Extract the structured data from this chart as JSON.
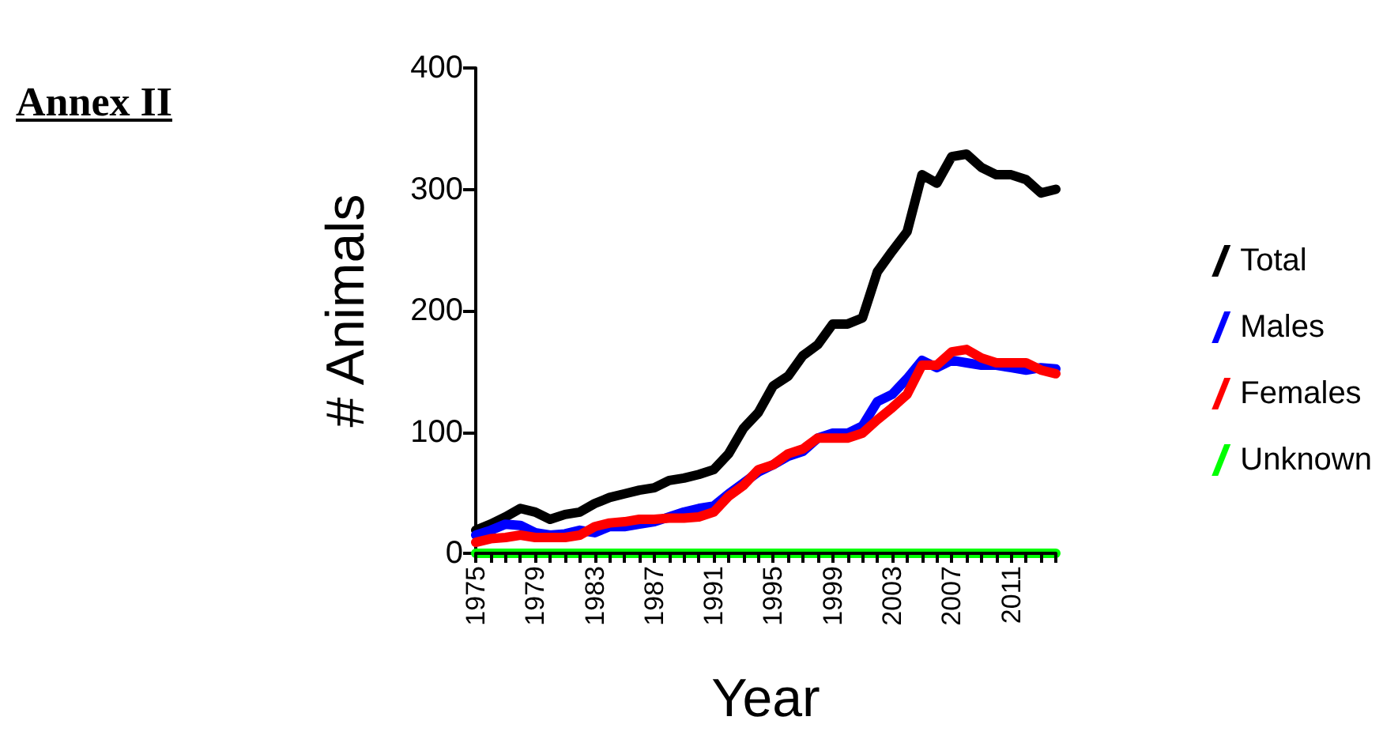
{
  "chart_data": {
    "type": "line",
    "title": "Annex II",
    "xlabel": "Year",
    "ylabel": "# Animals",
    "x": [
      1975,
      1976,
      1977,
      1978,
      1979,
      1980,
      1981,
      1982,
      1983,
      1984,
      1985,
      1986,
      1987,
      1988,
      1989,
      1990,
      1991,
      1992,
      1993,
      1994,
      1995,
      1996,
      1997,
      1998,
      1999,
      2000,
      2001,
      2002,
      2003,
      2004,
      2005,
      2006,
      2007,
      2008,
      2009,
      2010,
      2011,
      2012,
      2013,
      2014
    ],
    "series": [
      {
        "name": "Total",
        "color": "#000000",
        "values": [
          19,
          24,
          30,
          37,
          34,
          28,
          32,
          34,
          41,
          46,
          49,
          52,
          54,
          60,
          62,
          65,
          69,
          82,
          103,
          116,
          138,
          146,
          163,
          172,
          189,
          189,
          194,
          232,
          249,
          265,
          312,
          305,
          327,
          329,
          318,
          312,
          312,
          308,
          297,
          300
        ]
      },
      {
        "name": "Males",
        "color": "#0000ff",
        "values": [
          15,
          19,
          24,
          23,
          17,
          15,
          16,
          19,
          17,
          22,
          22,
          24,
          26,
          30,
          34,
          37,
          39,
          49,
          58,
          67,
          73,
          80,
          84,
          95,
          99,
          99,
          105,
          125,
          131,
          144,
          159,
          153,
          159,
          157,
          155,
          155,
          153,
          151,
          153,
          152
        ]
      },
      {
        "name": "Females",
        "color": "#ff0000",
        "values": [
          9,
          12,
          13,
          15,
          13,
          13,
          13,
          15,
          22,
          25,
          26,
          28,
          28,
          29,
          29,
          30,
          34,
          47,
          56,
          69,
          73,
          82,
          86,
          95,
          95,
          95,
          99,
          110,
          120,
          131,
          155,
          155,
          166,
          168,
          161,
          157,
          157,
          157,
          151,
          148
        ]
      },
      {
        "name": "Unknown",
        "color": "#00ff00",
        "values": [
          0,
          0,
          0,
          0,
          0,
          0,
          0,
          0,
          0,
          0,
          0,
          0,
          0,
          0,
          0,
          0,
          0,
          0,
          0,
          0,
          0,
          0,
          0,
          0,
          0,
          0,
          0,
          0,
          0,
          0,
          0,
          0,
          0,
          0,
          0,
          0,
          0,
          0,
          0,
          0
        ]
      }
    ],
    "xlim": [
      1975,
      2014
    ],
    "xticks": [
      1975,
      {
        "value": 1976,
        "label": null
      },
      {
        "value": 1977,
        "label": null
      },
      {
        "value": 1978,
        "label": null
      },
      1979,
      {
        "value": 1980,
        "label": null
      },
      {
        "value": 1981,
        "label": null
      },
      {
        "value": 1982,
        "label": null
      },
      1983,
      {
        "value": 1984,
        "label": null
      },
      {
        "value": 1985,
        "label": null
      },
      {
        "value": 1986,
        "label": null
      },
      1987,
      {
        "value": 1988,
        "label": null
      },
      {
        "value": 1989,
        "label": null
      },
      {
        "value": 1990,
        "label": null
      },
      1991,
      {
        "value": 1992,
        "label": null
      },
      {
        "value": 1993,
        "label": null
      },
      {
        "value": 1994,
        "label": null
      },
      1995,
      {
        "value": 1996,
        "label": null
      },
      {
        "value": 1997,
        "label": null
      },
      {
        "value": 1998,
        "label": null
      },
      1999,
      {
        "value": 2000,
        "label": null
      },
      {
        "value": 2001,
        "label": null
      },
      {
        "value": 2002,
        "label": null
      },
      2003,
      {
        "value": 2004,
        "label": null
      },
      {
        "value": 2005,
        "label": null
      },
      {
        "value": 2006,
        "label": null
      },
      2007,
      {
        "value": 2008,
        "label": null
      },
      {
        "value": 2009,
        "label": null
      },
      {
        "value": 2010,
        "label": null
      },
      2011,
      {
        "value": 2012,
        "label": null
      },
      {
        "value": 2013,
        "label": null
      },
      {
        "value": 2014,
        "label": null
      }
    ],
    "ylim": [
      0,
      400
    ],
    "yticks": [
      0,
      100,
      200,
      300,
      400
    ],
    "grid": false,
    "legend": "right",
    "marker": "none",
    "line_style": "solid"
  }
}
